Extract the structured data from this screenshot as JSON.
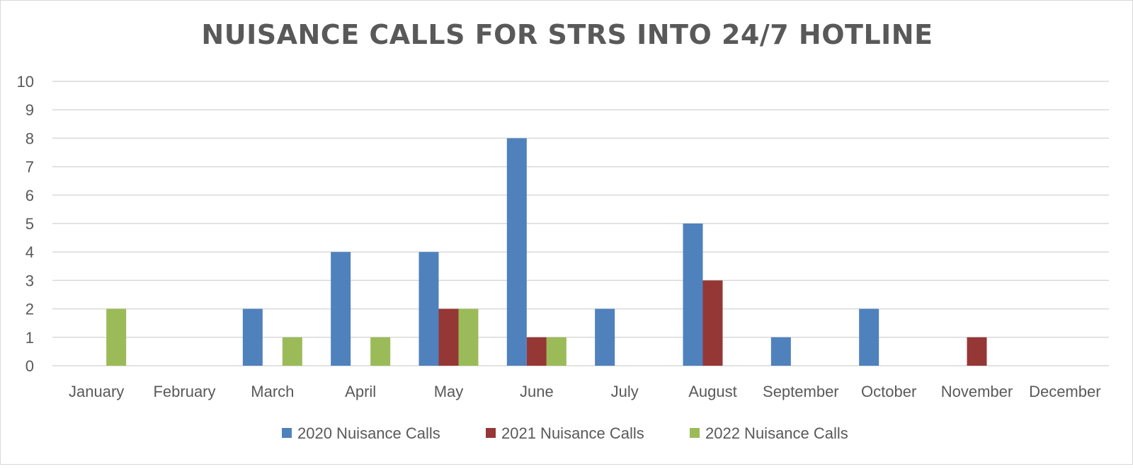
{
  "chart_data": {
    "type": "bar",
    "title": "NUISANCE CALLS FOR STRS INTO 24/7 HOTLINE",
    "xlabel": "",
    "ylabel": "",
    "ylim": [
      0,
      10
    ],
    "yticks": [
      "0",
      "1",
      "2",
      "3",
      "4",
      "5",
      "6",
      "7",
      "8",
      "9",
      "10"
    ],
    "grid": true,
    "legend_position": "bottom",
    "categories": [
      "January",
      "February",
      "March",
      "April",
      "May",
      "June",
      "July",
      "August",
      "September",
      "October",
      "November",
      "December"
    ],
    "series": [
      {
        "name": "2020 Nuisance Calls",
        "color": "#4f81bd",
        "values": [
          0,
          0,
          2,
          4,
          4,
          8,
          2,
          5,
          1,
          2,
          0,
          0
        ]
      },
      {
        "name": "2021 Nuisance Calls",
        "color": "#953735",
        "values": [
          0,
          0,
          0,
          0,
          2,
          1,
          0,
          3,
          0,
          0,
          1,
          0
        ]
      },
      {
        "name": "2022 Nuisance Calls",
        "color": "#9bbb59",
        "values": [
          2,
          0,
          1,
          1,
          2,
          1,
          0,
          0,
          0,
          0,
          0,
          0
        ]
      }
    ]
  }
}
